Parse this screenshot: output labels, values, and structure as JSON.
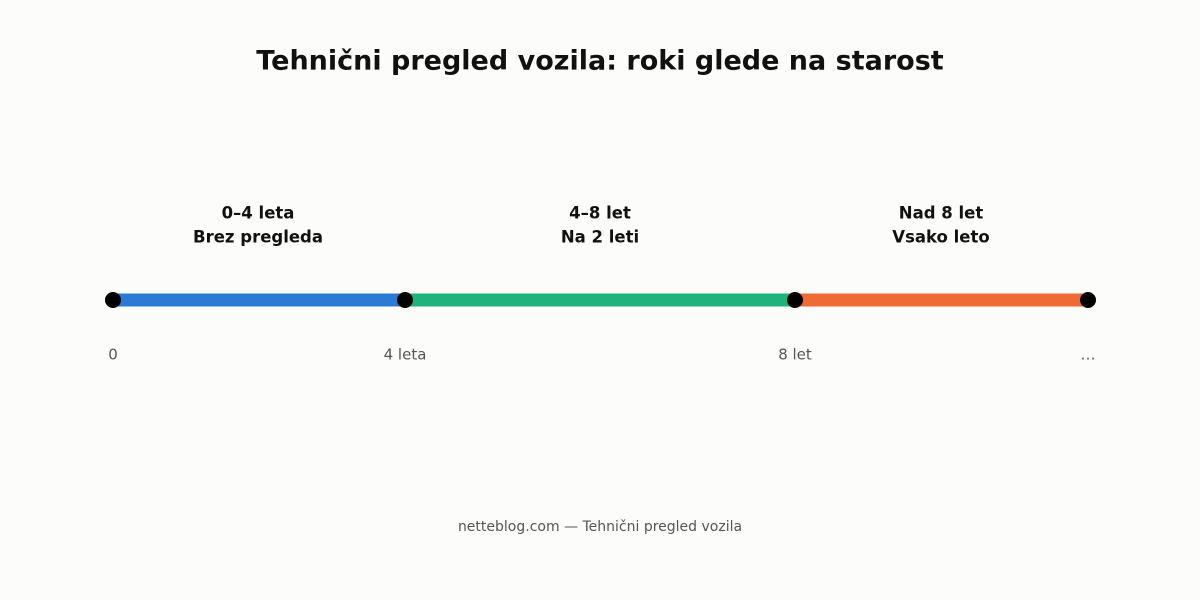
{
  "title": "Tehnični pregled vozila: roki glede na starost",
  "segments": [
    {
      "range": "0–4 leta",
      "rule": "Brez pregleda"
    },
    {
      "range": "4–8 let",
      "rule": "Na 2 leti"
    },
    {
      "range": "Nad 8 let",
      "rule": "Vsako leto"
    }
  ],
  "ticks": [
    "0",
    "4 leta",
    "8 let",
    "…"
  ],
  "footer": "netteblog.com — Tehnični pregled vozila"
}
